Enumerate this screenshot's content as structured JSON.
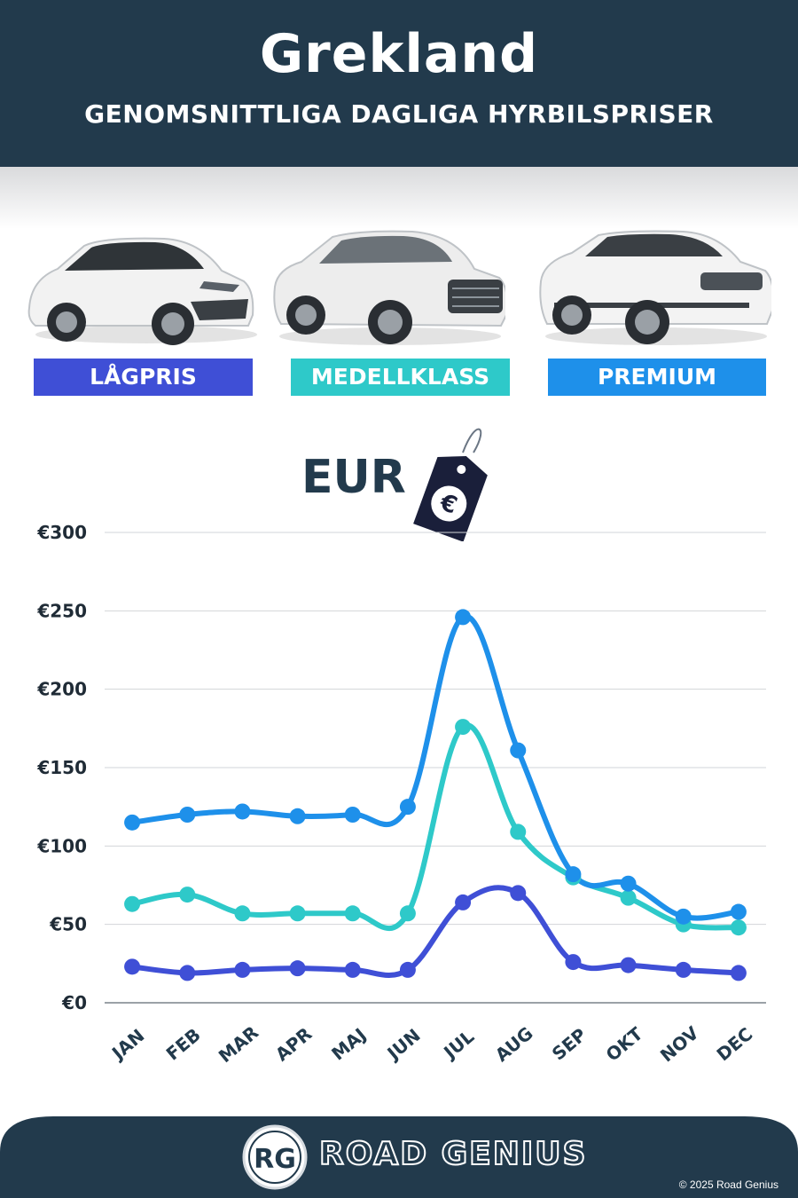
{
  "header": {
    "title": "Grekland",
    "subtitle": "GENOMSNITTLIGA DAGLIGA HYRBILSPRISER"
  },
  "categories": [
    {
      "label": "LÅGPRIS",
      "color": "#3f4fd6"
    },
    {
      "label": "MEDELLKLASS",
      "color": "#2ec9c9"
    },
    {
      "label": "PREMIUM",
      "color": "#1e90ea"
    }
  ],
  "currency_label": "EUR",
  "tag_icon": "euro-price-tag-icon",
  "chart_data": {
    "type": "line",
    "categories": [
      "JAN",
      "FEB",
      "MAR",
      "APR",
      "MAJ",
      "JUN",
      "JUL",
      "AUG",
      "SEP",
      "OKT",
      "NOV",
      "DEC"
    ],
    "series": [
      {
        "name": "LÅGPRIS",
        "color": "#3f4fd6",
        "values": [
          23,
          19,
          21,
          22,
          21,
          21,
          64,
          70,
          26,
          24,
          21,
          19
        ]
      },
      {
        "name": "MEDELLKLASS",
        "color": "#2ec9c9",
        "values": [
          63,
          69,
          57,
          57,
          57,
          57,
          176,
          109,
          80,
          67,
          50,
          48
        ]
      },
      {
        "name": "PREMIUM",
        "color": "#1e90ea",
        "values": [
          115,
          120,
          122,
          119,
          120,
          125,
          246,
          161,
          82,
          76,
          55,
          58
        ]
      }
    ],
    "ylim": [
      0,
      300
    ],
    "yticks": [
      "€0",
      "€50",
      "€100",
      "€150",
      "€200",
      "€250",
      "€300"
    ],
    "ytick_values": [
      0,
      50,
      100,
      150,
      200,
      250,
      300
    ],
    "grid": true
  },
  "footer": {
    "logo_initials": "RG",
    "brand": "ROAD GENIUS",
    "copyright": "© 2025 Road Genius",
    "bg_color": "#223a4c"
  }
}
